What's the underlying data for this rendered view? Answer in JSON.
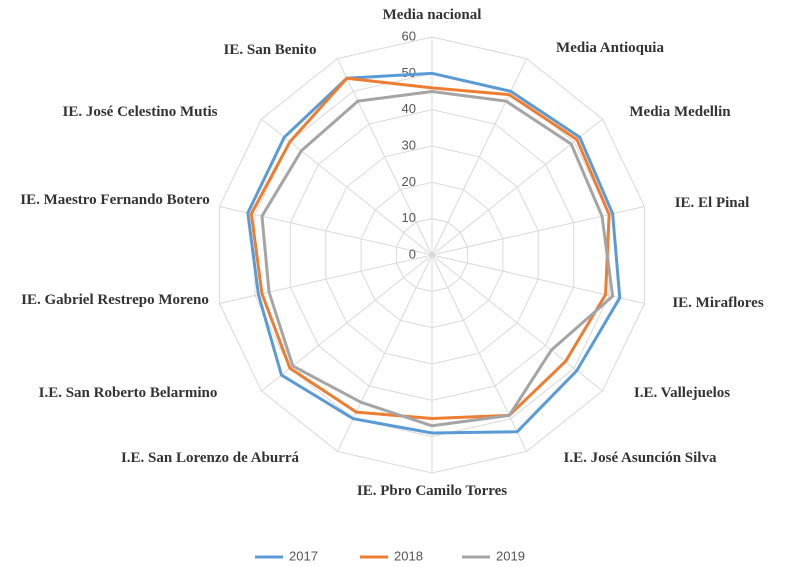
{
  "chart_data": {
    "type": "radar",
    "categories": [
      "Media nacional",
      "Media Antioquia",
      "Media Medellin",
      "IE. El Pinal",
      "IE. Miraflores",
      "I.E. Vallejuelos",
      "I.E. José Asunción Silva",
      "IE. Pbro Camilo Torres",
      "I.E. San Lorenzo de Aburrá",
      "I.E. San Roberto Belarmino",
      "IE. Gabriel Restrepo Moreno",
      "IE. Maestro Fernando Botero",
      "IE. José Celestino Mutis",
      "IE. San Benito"
    ],
    "series": [
      {
        "name": "2017",
        "color": "#5b9bd5",
        "values": [
          50,
          50,
          52,
          51,
          53,
          51,
          54,
          49,
          50,
          53,
          49,
          52,
          52,
          54
        ]
      },
      {
        "name": "2018",
        "color": "#ed7d31",
        "values": [
          46,
          49,
          51,
          50,
          49,
          47,
          49,
          45,
          48,
          50,
          48,
          51,
          50,
          54
        ]
      },
      {
        "name": "2019",
        "color": "#a5a5a5",
        "values": [
          45,
          47,
          49,
          48,
          51,
          42,
          49,
          47,
          45,
          49,
          46,
          48,
          46,
          47
        ]
      }
    ],
    "ylim": [
      0,
      60
    ],
    "yticks": [
      0,
      10,
      20,
      30,
      40,
      50,
      60
    ],
    "grid": true,
    "legend": "bottom"
  }
}
